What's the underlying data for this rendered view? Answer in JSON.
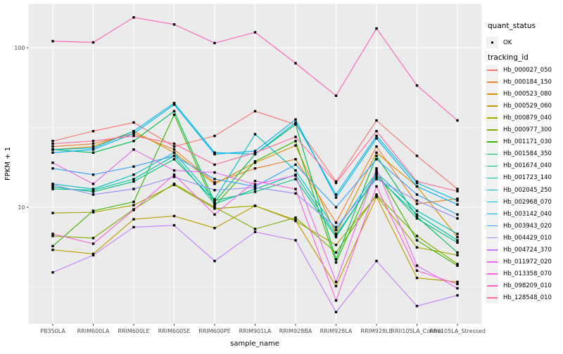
{
  "chart_data": {
    "type": "line",
    "title": "",
    "xlabel": "sample_name",
    "ylabel": "FPKM + 1",
    "y_scale": "log10",
    "ylim_approx": [
      1.9,
      190
    ],
    "y_major_ticks": [
      {
        "label": "100",
        "value": 100
      },
      {
        "label": "10",
        "value": 10
      }
    ],
    "y_minor_ticks": [
      31.62,
      3.162
    ],
    "grid": "on",
    "panel_bg": "#ebebeb",
    "grid_color": "#ffffff",
    "point_color": "#000000",
    "legend_position": "right",
    "categories": [
      "PB350LA",
      "RRIM600LA",
      "RRIM600LE",
      "RRIM600SE",
      "RRIM600PE",
      "RRIM901LA",
      "RRIM928BA",
      "RRIM928LA",
      "RRIM928LE",
      "RRII105LA_Control",
      "RRII105LA_Stressed"
    ],
    "series": [
      {
        "name": "Hb_000027_050",
        "color": "#F8766D",
        "values": [
          26,
          30,
          34,
          24,
          28,
          40,
          33,
          14.5,
          35,
          21,
          13
        ]
      },
      {
        "name": "Hb_000184_150",
        "color": "#EA8331",
        "values": [
          24,
          25,
          29,
          23,
          14.3,
          17.5,
          20,
          8,
          24,
          10.5,
          11.3
        ]
      },
      {
        "name": "Hb_000523_080",
        "color": "#D89000",
        "values": [
          23,
          24,
          30,
          22,
          14,
          19,
          24.4,
          6.8,
          22,
          13.5,
          6.5
        ]
      },
      {
        "name": "Hb_000529_060",
        "color": "#C09B00",
        "values": [
          5.4,
          5.1,
          8.4,
          8.8,
          7.4,
          10.2,
          8.3,
          3.2,
          11.6,
          3.6,
          3.4
        ]
      },
      {
        "name": "Hb_000879_040",
        "color": "#A3A500",
        "values": [
          9.2,
          9.3,
          10.3,
          13.8,
          9.8,
          10.2,
          8.2,
          5.8,
          11.8,
          5.6,
          5.0
        ]
      },
      {
        "name": "Hb_000977_300",
        "color": "#7CAE00",
        "values": [
          6.6,
          6.4,
          9.7,
          14,
          10,
          7.3,
          8.6,
          5.2,
          12,
          6.6,
          4.4
        ]
      },
      {
        "name": "Hb_001171_030",
        "color": "#39B600",
        "values": [
          5.7,
          9.5,
          10.8,
          38,
          10.2,
          19.4,
          26,
          4.5,
          17,
          6.2,
          4.3
        ]
      },
      {
        "name": "Hb_001584_350",
        "color": "#00BB4E",
        "values": [
          23,
          22,
          26,
          40,
          10.8,
          21.5,
          33,
          4.7,
          21,
          8.7,
          5.2
        ]
      },
      {
        "name": "Hb_001674_040",
        "color": "#00BF7D",
        "values": [
          13.4,
          12.5,
          14.5,
          20,
          11,
          12.5,
          15,
          6.5,
          16,
          8.5,
          6.0
        ]
      },
      {
        "name": "Hb_001723_140",
        "color": "#00C1A3",
        "values": [
          13,
          12.8,
          15,
          21,
          10.5,
          13,
          16,
          6.7,
          15.5,
          9,
          6.2
        ]
      },
      {
        "name": "Hb_002045_250",
        "color": "#00BFC4",
        "values": [
          14,
          13,
          16,
          22,
          11.2,
          28.7,
          17,
          7.2,
          16.5,
          9.5,
          6.8
        ]
      },
      {
        "name": "Hb_002968_070",
        "color": "#00BAE0",
        "values": [
          23,
          23.5,
          30,
          45,
          22,
          21.5,
          34,
          12,
          28,
          14.2,
          11
        ]
      },
      {
        "name": "Hb_003142_040",
        "color": "#00B0F6",
        "values": [
          22,
          23,
          29,
          44,
          21.5,
          22.5,
          35.5,
          11.5,
          27,
          13.5,
          10.4
        ]
      },
      {
        "name": "Hb_003943_020",
        "color": "#35A2FF",
        "values": [
          17.5,
          16,
          18,
          21,
          15,
          13.5,
          18.5,
          10,
          20,
          12,
          9
        ]
      },
      {
        "name": "Hb_004429_010",
        "color": "#9590FF",
        "values": [
          13.8,
          12,
          13,
          15.5,
          12.8,
          13.3,
          12.2,
          7.5,
          15,
          11,
          8.5
        ]
      },
      {
        "name": "Hb_004724_370",
        "color": "#C77CFF",
        "values": [
          3.9,
          5.0,
          7.5,
          7.7,
          4.6,
          7.0,
          6.2,
          2.2,
          4.6,
          2.4,
          2.8
        ]
      },
      {
        "name": "Hb_011972_020",
        "color": "#E76BF3",
        "values": [
          19,
          14,
          23,
          17,
          16.5,
          13.9,
          15.8,
          3.4,
          17.5,
          4.3,
          3.1
        ]
      },
      {
        "name": "Hb_013358_070",
        "color": "#FA62DB",
        "values": [
          6.8,
          5.9,
          9.6,
          16,
          9,
          14.6,
          13,
          2.6,
          13.5,
          4.0,
          3.3
        ]
      },
      {
        "name": "Hb_098209_010",
        "color": "#FF62BC",
        "values": [
          110,
          108,
          155,
          140,
          107,
          125,
          80,
          50,
          132,
          58,
          35
        ]
      },
      {
        "name": "Hb_128548_010",
        "color": "#FF6A98",
        "values": [
          25,
          26,
          28,
          25,
          18.5,
          22,
          27.6,
          14.2,
          30,
          14.5,
          12.6
        ]
      }
    ]
  },
  "legend": {
    "quant_status_title": "quant_status",
    "quant_status_items": [
      {
        "label": "OK"
      }
    ],
    "tracking_id_title": "tracking_id"
  }
}
